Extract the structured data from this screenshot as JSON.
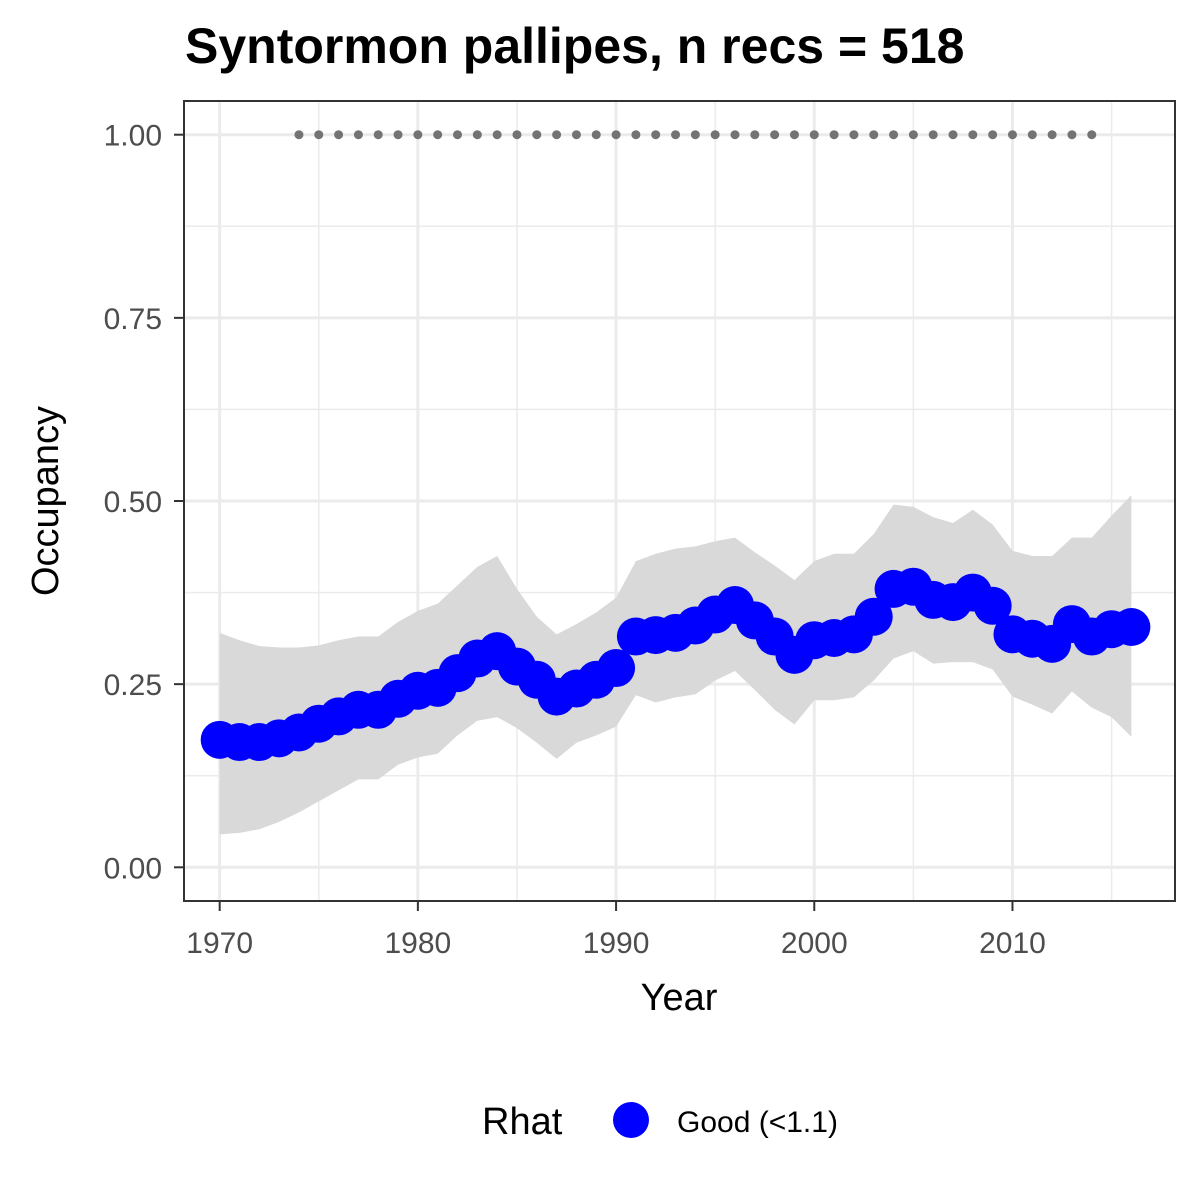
{
  "chart_data": {
    "type": "line",
    "title": "Syntormon pallipes, n recs = 518",
    "xlabel": "Year",
    "ylabel": "Occupancy",
    "xlim": [
      1968.2,
      2018.2
    ],
    "ylim": [
      -0.046,
      1.046
    ],
    "x_ticks": [
      1970,
      1980,
      1990,
      2000,
      2010
    ],
    "x_tick_labels": [
      "1970",
      "1980",
      "1990",
      "2000",
      "2010"
    ],
    "y_ticks": [
      0,
      0.25,
      0.5,
      0.75,
      1.0
    ],
    "y_tick_labels": [
      "0.00",
      "0.25",
      "0.50",
      "0.75",
      "1.00"
    ],
    "grid": true,
    "legend": {
      "title": "Rhat",
      "position": "bottom",
      "entries": [
        {
          "label": "Good (<1.1)",
          "color": "#0000ff"
        }
      ]
    },
    "colors": {
      "point": "#0000ff",
      "ribbon": "#d9d9d9",
      "record_dots": "#737373",
      "grid": "#ebebeb",
      "panel_border": "#333333"
    },
    "years": [
      1970,
      1971,
      1972,
      1973,
      1974,
      1975,
      1976,
      1977,
      1978,
      1979,
      1980,
      1981,
      1982,
      1983,
      1984,
      1985,
      1986,
      1987,
      1988,
      1989,
      1990,
      1991,
      1992,
      1993,
      1994,
      1995,
      1996,
      1997,
      1998,
      1999,
      2000,
      2001,
      2002,
      2003,
      2004,
      2005,
      2006,
      2007,
      2008,
      2009,
      2010,
      2011,
      2012,
      2013,
      2014,
      2015,
      2016
    ],
    "series": [
      {
        "name": "Good (<1.1)",
        "values": [
          0.174,
          0.171,
          0.171,
          0.176,
          0.184,
          0.196,
          0.206,
          0.215,
          0.215,
          0.23,
          0.241,
          0.245,
          0.265,
          0.285,
          0.295,
          0.274,
          0.256,
          0.233,
          0.244,
          0.256,
          0.272,
          0.315,
          0.317,
          0.32,
          0.33,
          0.345,
          0.358,
          0.337,
          0.315,
          0.29,
          0.31,
          0.313,
          0.318,
          0.342,
          0.38,
          0.383,
          0.365,
          0.362,
          0.375,
          0.357,
          0.318,
          0.312,
          0.305,
          0.332,
          0.315,
          0.325,
          0.328
        ]
      }
    ],
    "ribbon": {
      "lower": [
        0.045,
        0.047,
        0.052,
        0.062,
        0.075,
        0.09,
        0.105,
        0.12,
        0.12,
        0.14,
        0.15,
        0.155,
        0.18,
        0.2,
        0.205,
        0.19,
        0.17,
        0.148,
        0.17,
        0.18,
        0.192,
        0.235,
        0.225,
        0.232,
        0.236,
        0.255,
        0.268,
        0.242,
        0.215,
        0.195,
        0.228,
        0.228,
        0.232,
        0.255,
        0.285,
        0.295,
        0.278,
        0.28,
        0.28,
        0.27,
        0.233,
        0.222,
        0.21,
        0.24,
        0.218,
        0.205,
        0.178
      ],
      "upper": [
        0.32,
        0.31,
        0.302,
        0.3,
        0.3,
        0.303,
        0.31,
        0.315,
        0.315,
        0.335,
        0.35,
        0.36,
        0.385,
        0.41,
        0.425,
        0.38,
        0.342,
        0.318,
        0.332,
        0.348,
        0.368,
        0.418,
        0.428,
        0.435,
        0.438,
        0.445,
        0.45,
        0.43,
        0.412,
        0.392,
        0.418,
        0.428,
        0.428,
        0.455,
        0.495,
        0.492,
        0.478,
        0.47,
        0.488,
        0.468,
        0.432,
        0.425,
        0.425,
        0.45,
        0.45,
        0.48,
        0.508
      ]
    },
    "record_years": [
      1974,
      1975,
      1976,
      1977,
      1978,
      1979,
      1980,
      1981,
      1982,
      1983,
      1984,
      1985,
      1986,
      1987,
      1988,
      1989,
      1990,
      1991,
      1992,
      1993,
      1994,
      1995,
      1996,
      1997,
      1998,
      1999,
      2000,
      2001,
      2002,
      2003,
      2004,
      2005,
      2006,
      2007,
      2008,
      2009,
      2010,
      2011,
      2012,
      2013,
      2014
    ],
    "record_y": 1.0
  }
}
